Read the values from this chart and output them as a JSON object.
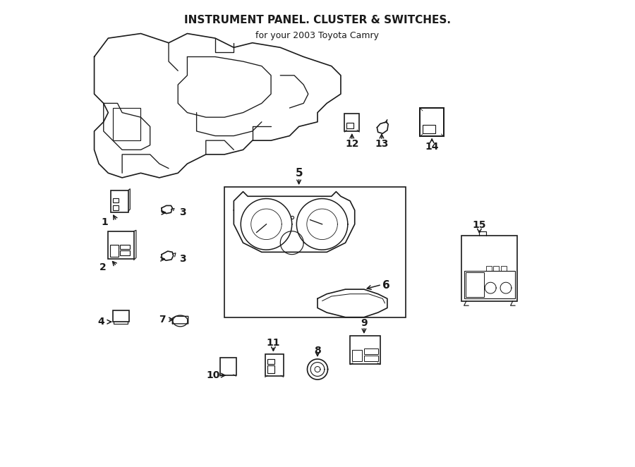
{
  "title": "INSTRUMENT PANEL. CLUSTER & SWITCHES.",
  "subtitle": "for your 2003 Toyota Camry",
  "bg_color": "#ffffff",
  "line_color": "#1a1a1a",
  "line_width": 1.2
}
